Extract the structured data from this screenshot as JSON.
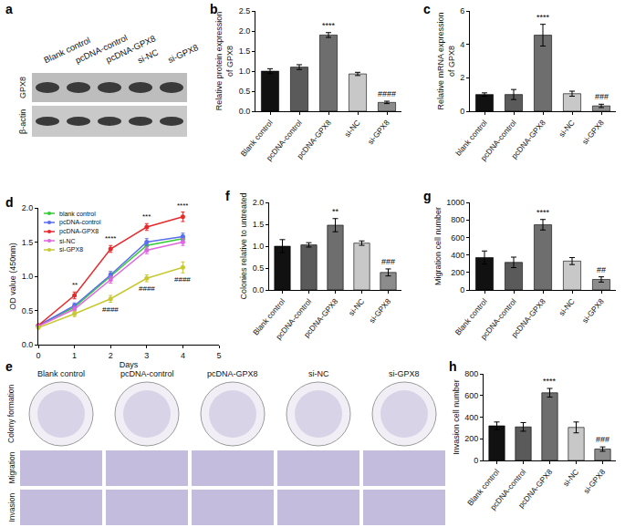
{
  "blot": {
    "panel": "a",
    "lanes": [
      "Blank control",
      "pcDNA-control",
      "pcDNA-GPX8",
      "si-NC",
      "si-GPX8"
    ],
    "rows": [
      "GPX8",
      "β-actin"
    ]
  },
  "images": {
    "panel": "e",
    "columns": [
      "Blank control",
      "pcDNA-control",
      "pcDNA-GPX8",
      "si-NC",
      "si-GPX8"
    ],
    "rows": [
      "Colony formation",
      "Migration",
      "Invasion"
    ]
  },
  "chart_data": [
    {
      "panel": "b",
      "type": "bar",
      "ylabel": "Relative protein expression\nof GPX8",
      "categories": [
        "Blank control",
        "pcDNA-control",
        "pcDNA-GPX8",
        "si-NC",
        "si-GPX8"
      ],
      "values": [
        1.0,
        1.1,
        1.9,
        0.93,
        0.22
      ],
      "errors": [
        0.06,
        0.06,
        0.06,
        0.04,
        0.03
      ],
      "significance": [
        null,
        null,
        "****",
        null,
        "####"
      ],
      "colors": [
        "#111111",
        "#5a5a5a",
        "#6e6e6e",
        "#c8c8c8",
        "#8c8c8c"
      ],
      "ylim": [
        0,
        2.5
      ],
      "yticks": [
        {
          "value": 0,
          "label": "0.0"
        },
        0.5,
        {
          "value": 1,
          "label": "1.0"
        },
        1.5,
        {
          "value": 2,
          "label": "2.0"
        },
        2.5
      ],
      "grid": false
    },
    {
      "panel": "c",
      "type": "bar",
      "ylabel": "Relative mRNA expression\nof GPX8",
      "categories": [
        "blank control",
        "pcDNA-control",
        "pcDNA-GPX8",
        "si-NC",
        "si-GPX8"
      ],
      "values": [
        1.0,
        1.0,
        4.55,
        1.05,
        0.32
      ],
      "errors": [
        0.1,
        0.3,
        0.65,
        0.15,
        0.1
      ],
      "significance": [
        null,
        null,
        "****",
        null,
        "###"
      ],
      "colors": [
        "#111111",
        "#5a5a5a",
        "#6e6e6e",
        "#c8c8c8",
        "#8c8c8c"
      ],
      "ylim": [
        0,
        6
      ],
      "yticks": [
        0,
        2,
        4,
        6
      ],
      "grid": false
    },
    {
      "panel": "d",
      "type": "line",
      "xlabel": "Days",
      "ylabel": "OD value (450nm)",
      "x": [
        0,
        1,
        2,
        3,
        4
      ],
      "xlim": [
        0,
        5
      ],
      "xticks": [
        0,
        1,
        2,
        3,
        4,
        5
      ],
      "ylim": [
        0,
        2
      ],
      "yticks": [
        {
          "value": 0,
          "label": "0.0"
        },
        0.5,
        {
          "value": 1,
          "label": "1.0"
        },
        1.5,
        {
          "value": 2,
          "label": "2.0"
        }
      ],
      "legend": "upper left",
      "marker": "circle",
      "grid": false,
      "series": [
        {
          "name": "blank control",
          "color": "#33cc33",
          "values": [
            0.28,
            0.55,
            1.0,
            1.45,
            1.55
          ],
          "errors": [
            0.02,
            0.04,
            0.05,
            0.05,
            0.05
          ],
          "significance": null
        },
        {
          "name": "pcDNA-control",
          "color": "#5b6cf0",
          "values": [
            0.28,
            0.57,
            1.02,
            1.5,
            1.58
          ],
          "errors": [
            0.02,
            0.04,
            0.05,
            0.05,
            0.05
          ],
          "significance": null
        },
        {
          "name": "pcDNA-GPX8",
          "color": "#e8292b",
          "values": [
            0.28,
            0.72,
            1.4,
            1.72,
            1.87
          ],
          "errors": [
            0.02,
            0.05,
            0.05,
            0.05,
            0.07
          ],
          "significance": [
            null,
            "**",
            "****",
            "***",
            "****"
          ]
        },
        {
          "name": "si-NC",
          "color": "#e066e0",
          "values": [
            0.27,
            0.52,
            0.95,
            1.38,
            1.5
          ],
          "errors": [
            0.02,
            0.04,
            0.05,
            0.05,
            0.05
          ],
          "significance": null
        },
        {
          "name": "si-GPX8",
          "color": "#c8c832",
          "values": [
            0.25,
            0.45,
            0.67,
            0.97,
            1.13
          ],
          "errors": [
            0.02,
            0.04,
            0.05,
            0.05,
            0.08
          ],
          "significance": [
            null,
            null,
            "####",
            "####",
            "####"
          ]
        }
      ]
    },
    {
      "panel": "f",
      "type": "bar",
      "ylabel": "Colonies relative to untreated",
      "categories": [
        "Blank control",
        "pcDNA-control",
        "pcDNA-GPX8",
        "si-NC",
        "si-GPX8"
      ],
      "values": [
        1.0,
        1.03,
        1.48,
        1.07,
        0.4
      ],
      "errors": [
        0.15,
        0.05,
        0.15,
        0.05,
        0.08
      ],
      "significance": [
        null,
        null,
        "**",
        null,
        "###"
      ],
      "colors": [
        "#111111",
        "#5a5a5a",
        "#6e6e6e",
        "#c8c8c8",
        "#8c8c8c"
      ],
      "ylim": [
        0,
        2
      ],
      "yticks": [
        {
          "value": 0,
          "label": "0.0"
        },
        0.5,
        {
          "value": 1,
          "label": "1.0"
        },
        1.5,
        {
          "value": 2,
          "label": "2.0"
        }
      ],
      "grid": false
    },
    {
      "panel": "g",
      "type": "bar",
      "ylabel": "Migration cell number",
      "categories": [
        "Blank control",
        "pcDNA-control",
        "pcDNA-GPX8",
        "si-NC",
        "si-GPX8"
      ],
      "values": [
        370,
        315,
        745,
        330,
        120
      ],
      "errors": [
        75,
        60,
        60,
        40,
        30
      ],
      "significance": [
        null,
        null,
        "****",
        null,
        "##"
      ],
      "colors": [
        "#111111",
        "#5a5a5a",
        "#6e6e6e",
        "#c8c8c8",
        "#8c8c8c"
      ],
      "ylim": [
        0,
        1000
      ],
      "yticks": [
        0,
        200,
        400,
        600,
        800,
        1000
      ],
      "grid": false
    },
    {
      "panel": "h",
      "type": "bar",
      "ylabel": "Invasion cell number",
      "categories": [
        "Blank control",
        "pcDNA-control",
        "pcDNA-GPX8",
        "si-NC",
        "si-GPX8"
      ],
      "values": [
        320,
        310,
        625,
        305,
        105
      ],
      "errors": [
        35,
        40,
        40,
        50,
        20
      ],
      "significance": [
        null,
        null,
        "****",
        null,
        "###"
      ],
      "colors": [
        "#111111",
        "#5a5a5a",
        "#6e6e6e",
        "#c8c8c8",
        "#8c8c8c"
      ],
      "ylim": [
        0,
        800
      ],
      "yticks": [
        0,
        200,
        400,
        600,
        800
      ],
      "grid": false
    }
  ]
}
